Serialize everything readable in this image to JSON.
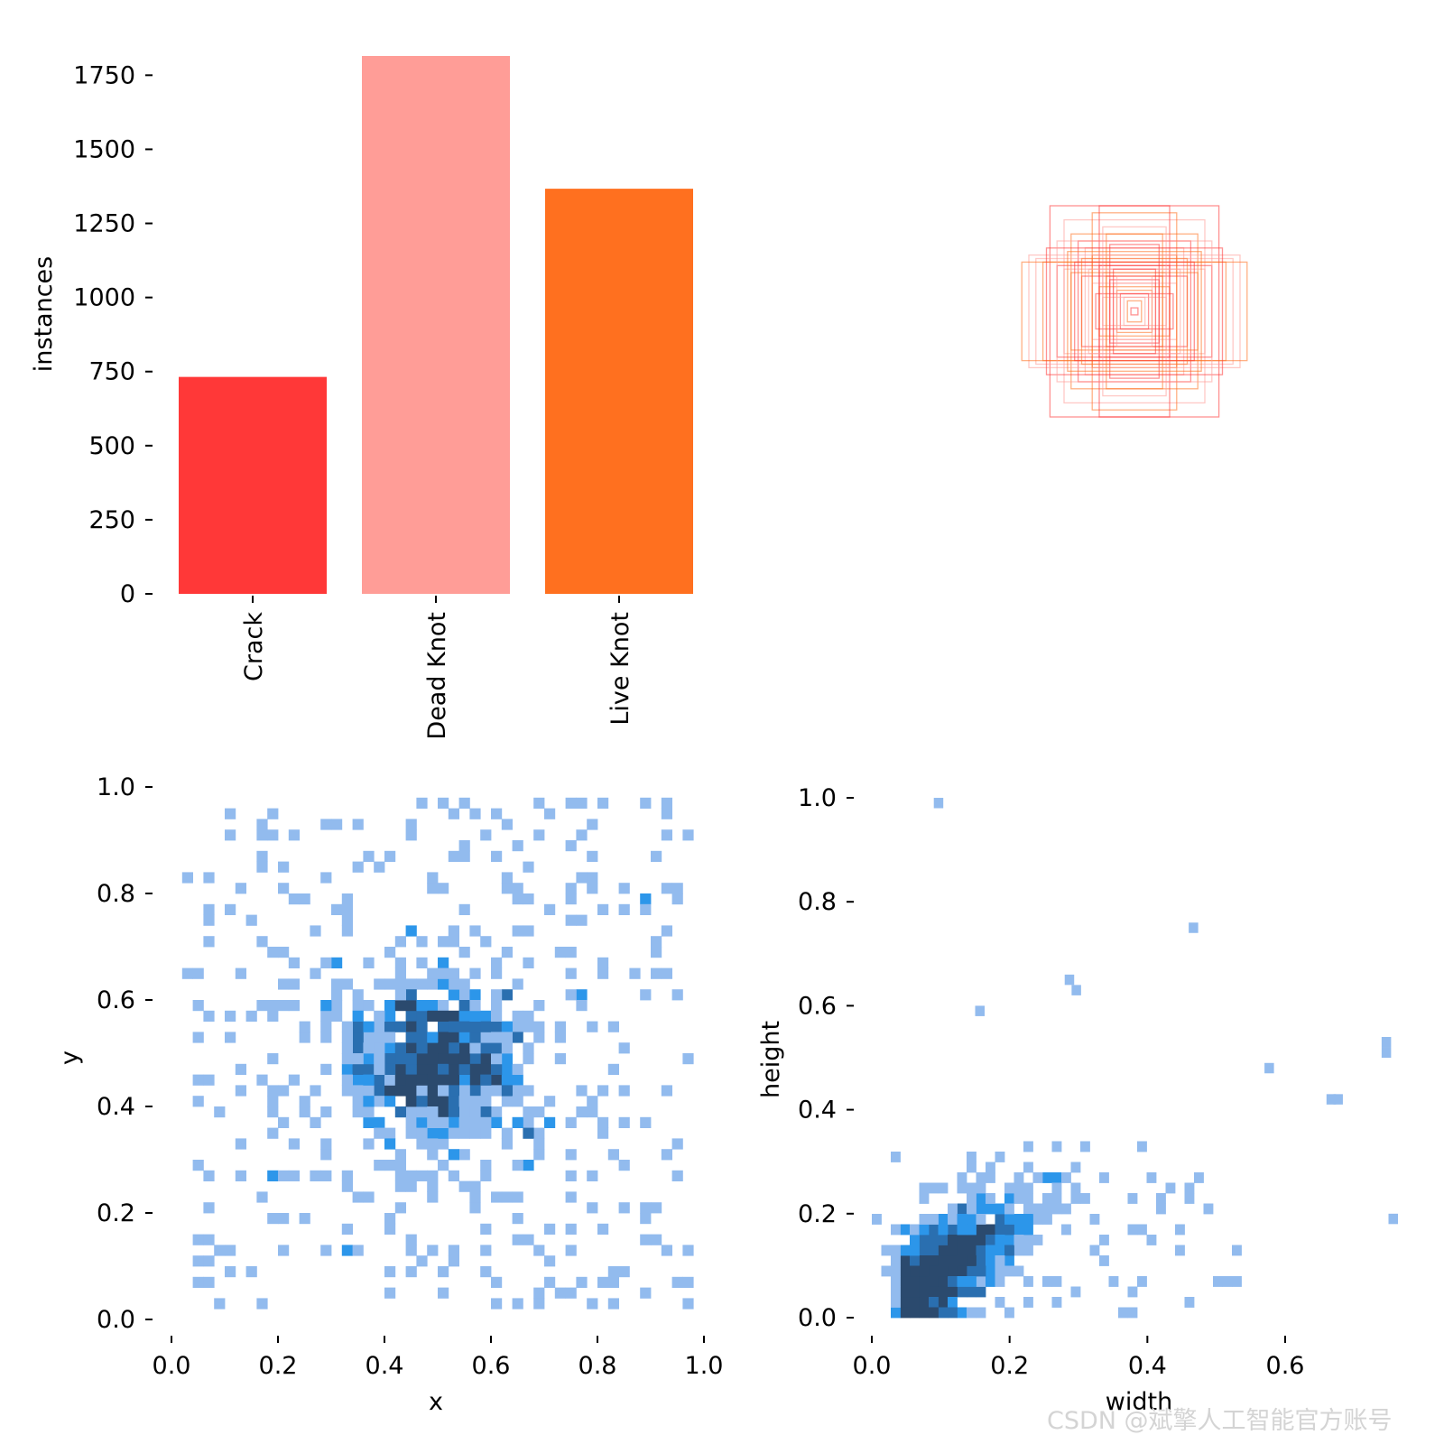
{
  "watermark": "CSDN @斌擎人工智能官方账号",
  "colors": {
    "crack": "#ff3838",
    "dead_knot": "#ff9d97",
    "live_knot": "#ff701f",
    "hist_light": "#92bbee",
    "hist_mid": "#2c96ea",
    "hist_dark": "#2b4a6e",
    "text": "#000000"
  },
  "chart_data": [
    {
      "id": "class-counts",
      "type": "bar",
      "title": "",
      "xlabel": "",
      "ylabel": "instances",
      "categories": [
        "Crack",
        "Dead Knot",
        "Live Knot"
      ],
      "values": [
        732,
        1815,
        1367
      ],
      "ylim": [
        0,
        1815
      ],
      "yticks": [
        0,
        250,
        500,
        750,
        1000,
        1250,
        1500,
        1750
      ],
      "ytick_labels": [
        "0",
        "250",
        "500",
        "750",
        "1000",
        "1250",
        "1500",
        "1750"
      ],
      "bar_colors": [
        "#ff3838",
        "#ff9d97",
        "#ff701f"
      ]
    },
    {
      "id": "box-overlay",
      "type": "scatter",
      "title": "",
      "description_units": "normalized width/height of label boxes drawn centered",
      "boxes": [
        [
          0.24,
          0.3
        ],
        [
          0.2,
          0.26
        ],
        [
          0.18,
          0.22
        ],
        [
          0.16,
          0.2
        ],
        [
          0.14,
          0.18
        ],
        [
          0.12,
          0.16
        ],
        [
          0.1,
          0.13
        ],
        [
          0.09,
          0.11
        ],
        [
          0.08,
          0.1
        ],
        [
          0.07,
          0.09
        ],
        [
          0.06,
          0.08
        ],
        [
          0.05,
          0.06
        ],
        [
          0.04,
          0.05
        ],
        [
          0.03,
          0.04
        ],
        [
          0.02,
          0.03
        ],
        [
          0.01,
          0.01
        ],
        [
          0.28,
          0.15
        ],
        [
          0.26,
          0.14
        ],
        [
          0.22,
          0.13
        ],
        [
          0.2,
          0.12
        ],
        [
          0.18,
          0.11
        ],
        [
          0.15,
          0.1
        ],
        [
          0.12,
          0.08
        ],
        [
          0.1,
          0.07
        ],
        [
          0.11,
          0.05
        ],
        [
          0.09,
          0.04
        ],
        [
          0.12,
          0.28
        ],
        [
          0.1,
          0.3
        ],
        [
          0.09,
          0.24
        ],
        [
          0.08,
          0.22
        ],
        [
          0.07,
          0.19
        ],
        [
          0.3,
          0.16
        ],
        [
          0.32,
          0.14
        ],
        [
          0.25,
          0.18
        ],
        [
          0.22,
          0.2
        ],
        [
          0.19,
          0.17
        ],
        [
          0.17,
          0.14
        ],
        [
          0.13,
          0.12
        ],
        [
          0.15,
          0.15
        ],
        [
          0.06,
          0.12
        ],
        [
          0.05,
          0.1
        ]
      ]
    },
    {
      "id": "xy-hist",
      "type": "heatmap",
      "xlabel": "x",
      "ylabel": "y",
      "xlim": [
        0.0,
        1.0
      ],
      "ylim": [
        0.0,
        1.0
      ],
      "xticks": [
        "0.0",
        "0.2",
        "0.4",
        "0.6",
        "0.8",
        "1.0"
      ],
      "yticks": [
        "0.0",
        "0.2",
        "0.4",
        "0.6",
        "0.8",
        "1.0"
      ],
      "center": [
        0.49,
        0.48
      ],
      "bins": 50
    },
    {
      "id": "wh-hist",
      "type": "heatmap",
      "xlabel": "width",
      "ylabel": "height",
      "xlim": [
        0.0,
        0.76
      ],
      "ylim": [
        0.0,
        1.0
      ],
      "xticks": [
        "0.0",
        "0.2",
        "0.4",
        "0.6"
      ],
      "yticks": [
        "0.0",
        "0.2",
        "0.4",
        "0.6",
        "0.8",
        "1.0"
      ],
      "outliers": [
        [
          0.09,
          0.98
        ],
        [
          0.46,
          0.74
        ],
        [
          0.28,
          0.64
        ],
        [
          0.29,
          0.62
        ],
        [
          0.15,
          0.58
        ],
        [
          0.74,
          0.52
        ],
        [
          0.74,
          0.5
        ],
        [
          0.57,
          0.47
        ],
        [
          0.66,
          0.41
        ],
        [
          0.67,
          0.41
        ],
        [
          0.75,
          0.18
        ]
      ],
      "bins": 50
    }
  ]
}
